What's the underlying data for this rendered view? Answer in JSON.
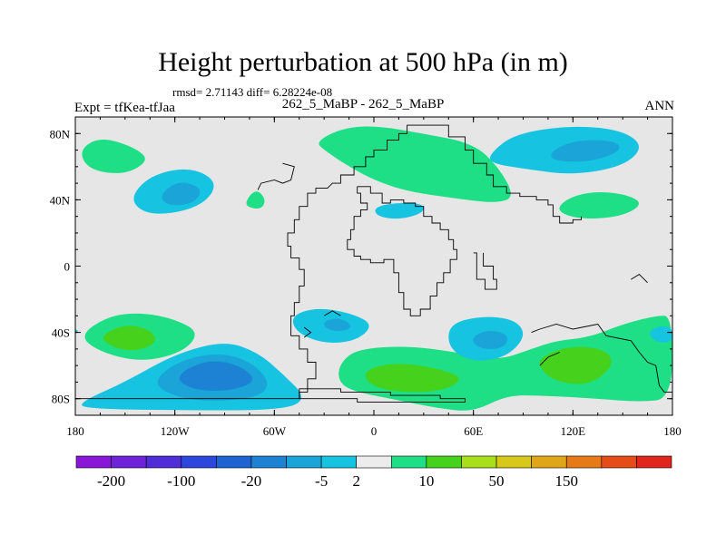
{
  "header": {
    "title": "Height perturbation at 500 hPa (in m)",
    "stats": "rmsd= 2.71143 diff= 6.28224e-08",
    "left_label": "Expt = tfKea-tfJaa",
    "center_label": "262_5_MaBP - 262_5_MaBP",
    "right_label": "ANN"
  },
  "chart_data": {
    "type": "heatmap",
    "title": "Height perturbation at 500 hPa (in m)",
    "xlabel": "",
    "ylabel": "",
    "xlim": [
      -180,
      180
    ],
    "ylim": [
      -90,
      90
    ],
    "x_ticks": [
      {
        "value": -180,
        "label": "180"
      },
      {
        "value": -120,
        "label": "120W"
      },
      {
        "value": -60,
        "label": "60W"
      },
      {
        "value": 0,
        "label": "0"
      },
      {
        "value": 60,
        "label": "60E"
      },
      {
        "value": 120,
        "label": "120E"
      },
      {
        "value": 180,
        "label": "180"
      }
    ],
    "y_ticks": [
      {
        "value": 80,
        "label": "80N"
      },
      {
        "value": 40,
        "label": "40N"
      },
      {
        "value": 0,
        "label": "0"
      },
      {
        "value": -40,
        "label": "40S"
      },
      {
        "value": -80,
        "label": "80S"
      }
    ],
    "background_color": "#e6e6e6",
    "colorbar": {
      "colors": [
        "#8a17d8",
        "#6e23d8",
        "#4f2ed8",
        "#2d46dc",
        "#1e63d2",
        "#1d82d4",
        "#1aa4d8",
        "#16c3e0",
        "#ececec",
        "#1ede86",
        "#46d21c",
        "#a8de1a",
        "#d8c81a",
        "#e0a619",
        "#e67a17",
        "#e54c18",
        "#e0261c"
      ],
      "labels": [
        "-200",
        "-100",
        "-20",
        "-5",
        "2",
        "10",
        "50",
        "150"
      ],
      "label_after_box": [
        1,
        3,
        5,
        7,
        8,
        10,
        12,
        14
      ]
    },
    "regions": [
      {
        "sign": "positive",
        "level": 1,
        "points": [
          [
            -178,
            70
          ],
          [
            -165,
            78
          ],
          [
            -145,
            72
          ],
          [
            -135,
            64
          ],
          [
            -150,
            55
          ],
          [
            -172,
            58
          ]
        ]
      },
      {
        "sign": "negative",
        "level": 1,
        "points": [
          [
            -148,
            40
          ],
          [
            -135,
            55
          ],
          [
            -110,
            60
          ],
          [
            -93,
            50
          ],
          [
            -105,
            35
          ],
          [
            -135,
            30
          ]
        ]
      },
      {
        "sign": "negative",
        "level": 2,
        "points": [
          [
            -130,
            42
          ],
          [
            -118,
            52
          ],
          [
            -103,
            47
          ],
          [
            -108,
            38
          ],
          [
            -123,
            36
          ]
        ]
      },
      {
        "sign": "positive",
        "level": 1,
        "points": [
          [
            -78,
            36
          ],
          [
            -75,
            43
          ],
          [
            -70,
            46
          ],
          [
            -65,
            40
          ],
          [
            -68,
            34
          ]
        ]
      },
      {
        "sign": "positive",
        "level": 1,
        "points": [
          [
            -35,
            75
          ],
          [
            -20,
            83
          ],
          [
            0,
            85
          ],
          [
            30,
            80
          ],
          [
            60,
            74
          ],
          [
            75,
            60
          ],
          [
            85,
            42
          ],
          [
            75,
            38
          ],
          [
            55,
            40
          ],
          [
            20,
            45
          ],
          [
            0,
            52
          ],
          [
            -15,
            60
          ],
          [
            -30,
            70
          ]
        ]
      },
      {
        "sign": "negative",
        "level": 1,
        "points": [
          [
            0,
            35
          ],
          [
            10,
            38
          ],
          [
            30,
            38
          ],
          [
            30,
            32
          ],
          [
            15,
            28
          ],
          [
            2,
            30
          ]
        ]
      },
      {
        "sign": "negative",
        "level": 1,
        "points": [
          [
            70,
            68
          ],
          [
            85,
            80
          ],
          [
            120,
            85
          ],
          [
            150,
            82
          ],
          [
            163,
            72
          ],
          [
            150,
            60
          ],
          [
            120,
            55
          ],
          [
            95,
            58
          ],
          [
            70,
            62
          ]
        ]
      },
      {
        "sign": "negative",
        "level": 2,
        "points": [
          [
            105,
            68
          ],
          [
            120,
            76
          ],
          [
            145,
            76
          ],
          [
            150,
            70
          ],
          [
            132,
            63
          ],
          [
            110,
            63
          ]
        ]
      },
      {
        "sign": "positive",
        "level": 1,
        "points": [
          [
            115,
            40
          ],
          [
            130,
            45
          ],
          [
            150,
            44
          ],
          [
            163,
            38
          ],
          [
            150,
            30
          ],
          [
            125,
            28
          ],
          [
            110,
            33
          ]
        ]
      },
      {
        "sign": "positive",
        "level": 1,
        "points": [
          [
            -178,
            -42
          ],
          [
            -160,
            -30
          ],
          [
            -140,
            -28
          ],
          [
            -120,
            -32
          ],
          [
            -105,
            -40
          ],
          [
            -115,
            -52
          ],
          [
            -140,
            -58
          ],
          [
            -165,
            -52
          ]
        ]
      },
      {
        "sign": "positive",
        "level": 2,
        "points": [
          [
            -165,
            -42
          ],
          [
            -150,
            -35
          ],
          [
            -135,
            -38
          ],
          [
            -130,
            -46
          ],
          [
            -145,
            -52
          ],
          [
            -160,
            -48
          ]
        ]
      },
      {
        "sign": "negative",
        "level": 1,
        "points": [
          [
            -177,
            -82
          ],
          [
            -150,
            -70
          ],
          [
            -120,
            -53
          ],
          [
            -90,
            -45
          ],
          [
            -70,
            -52
          ],
          [
            -55,
            -65
          ],
          [
            -40,
            -80
          ],
          [
            -55,
            -87
          ],
          [
            -120,
            -87
          ],
          [
            -175,
            -86
          ]
        ]
      },
      {
        "sign": "negative",
        "level": 2,
        "points": [
          [
            -135,
            -72
          ],
          [
            -120,
            -58
          ],
          [
            -95,
            -52
          ],
          [
            -75,
            -57
          ],
          [
            -62,
            -70
          ],
          [
            -70,
            -80
          ],
          [
            -110,
            -82
          ]
        ]
      },
      {
        "sign": "negative",
        "level": 3,
        "points": [
          [
            -120,
            -66
          ],
          [
            -100,
            -56
          ],
          [
            -80,
            -60
          ],
          [
            -70,
            -70
          ],
          [
            -90,
            -76
          ],
          [
            -112,
            -74
          ]
        ]
      },
      {
        "sign": "negative",
        "level": 1,
        "points": [
          [
            -50,
            -30
          ],
          [
            -35,
            -25
          ],
          [
            -15,
            -28
          ],
          [
            0,
            -35
          ],
          [
            -10,
            -45
          ],
          [
            -30,
            -47
          ],
          [
            -47,
            -40
          ]
        ]
      },
      {
        "sign": "negative",
        "level": 2,
        "points": [
          [
            -30,
            -33
          ],
          [
            -20,
            -31
          ],
          [
            -12,
            -37
          ],
          [
            -22,
            -40
          ],
          [
            -30,
            -37
          ]
        ]
      },
      {
        "sign": "positive",
        "level": 1,
        "points": [
          [
            -20,
            -58
          ],
          [
            -10,
            -50
          ],
          [
            20,
            -48
          ],
          [
            50,
            -52
          ],
          [
            75,
            -57
          ],
          [
            95,
            -50
          ],
          [
            110,
            -45
          ],
          [
            130,
            -43
          ],
          [
            150,
            -35
          ],
          [
            170,
            -30
          ],
          [
            180,
            -30
          ],
          [
            180,
            -80
          ],
          [
            160,
            -82
          ],
          [
            135,
            -80
          ],
          [
            100,
            -78
          ],
          [
            80,
            -78
          ],
          [
            60,
            -88
          ],
          [
            40,
            -86
          ],
          [
            10,
            -80
          ],
          [
            -15,
            -75
          ],
          [
            -22,
            -68
          ]
        ]
      },
      {
        "sign": "positive",
        "level": 2,
        "points": [
          [
            -5,
            -62
          ],
          [
            15,
            -58
          ],
          [
            40,
            -62
          ],
          [
            55,
            -68
          ],
          [
            40,
            -76
          ],
          [
            10,
            -76
          ],
          [
            -5,
            -70
          ]
        ]
      },
      {
        "sign": "positive",
        "level": 2,
        "points": [
          [
            100,
            -55
          ],
          [
            118,
            -48
          ],
          [
            140,
            -50
          ],
          [
            145,
            -60
          ],
          [
            130,
            -72
          ],
          [
            110,
            -70
          ],
          [
            100,
            -62
          ]
        ]
      },
      {
        "sign": "negative",
        "level": 1,
        "points": [
          [
            45,
            -35
          ],
          [
            65,
            -30
          ],
          [
            85,
            -32
          ],
          [
            92,
            -42
          ],
          [
            80,
            -55
          ],
          [
            60,
            -58
          ],
          [
            45,
            -50
          ]
        ]
      },
      {
        "sign": "negative",
        "level": 2,
        "points": [
          [
            58,
            -43
          ],
          [
            70,
            -38
          ],
          [
            82,
            -42
          ],
          [
            78,
            -50
          ],
          [
            63,
            -50
          ]
        ]
      },
      {
        "sign": "negative",
        "level": 1,
        "points": [
          [
            165,
            -40
          ],
          [
            172,
            -36
          ],
          [
            180,
            -37
          ],
          [
            180,
            -46
          ],
          [
            170,
            -46
          ]
        ]
      },
      {
        "sign": "negative",
        "level": 1,
        "points": [
          [
            -180,
            -38
          ],
          [
            -178,
            -39
          ],
          [
            -180,
            -41
          ]
        ]
      }
    ]
  }
}
